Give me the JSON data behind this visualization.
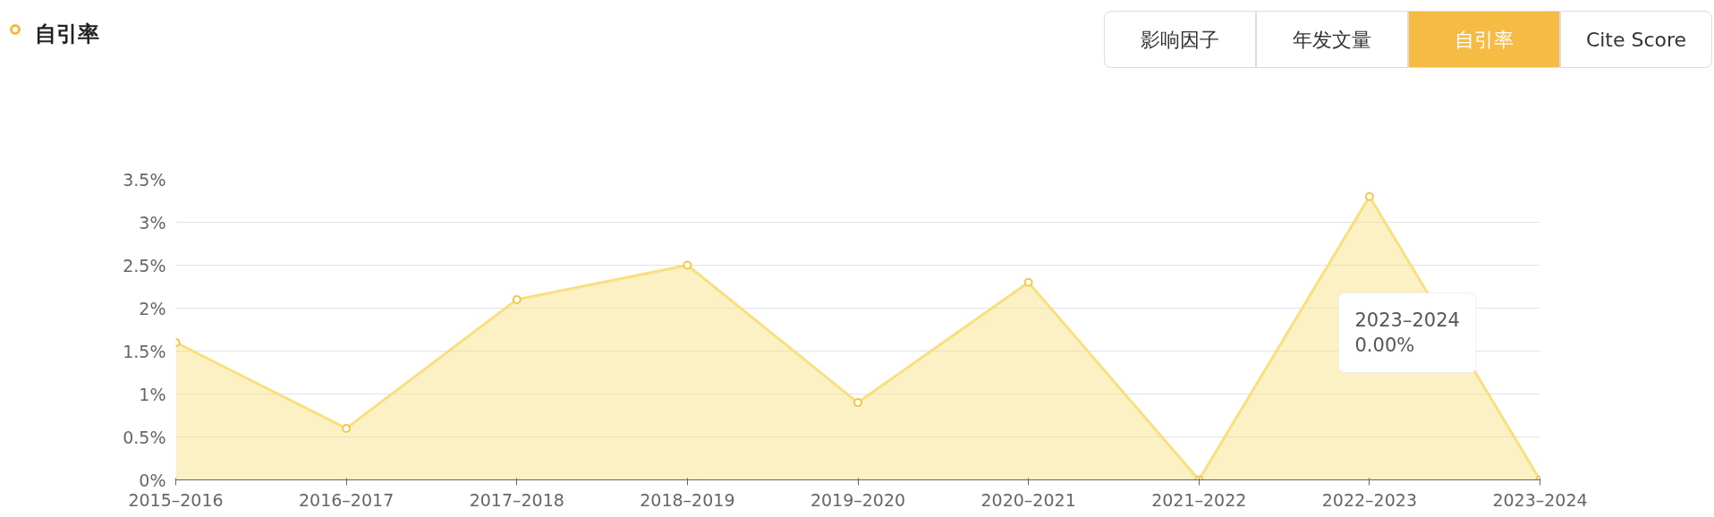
{
  "chart_data": {
    "type": "area",
    "title": "自引率",
    "categories": [
      "2015–2016",
      "2016–2017",
      "2017–2018",
      "2018–2019",
      "2019–2020",
      "2020–2021",
      "2021–2022",
      "2022–2023",
      "2023–2024"
    ],
    "values": [
      1.6,
      0.6,
      2.1,
      2.5,
      0.9,
      2.3,
      0,
      3.3,
      0
    ],
    "color": "#f9df7e",
    "marker": "circle",
    "grid": "y",
    "ylim": [
      0,
      3.5
    ],
    "yticks": [
      {
        "value": 0,
        "label": "0%"
      },
      {
        "value": 0.5,
        "label": "0.5%"
      },
      {
        "value": 1,
        "label": "1%"
      },
      {
        "value": 1.5,
        "label": "1.5%"
      },
      {
        "value": 2,
        "label": "2%"
      },
      {
        "value": 2.5,
        "label": "2.5%"
      },
      {
        "value": 3,
        "label": "3%"
      },
      {
        "value": 3.5,
        "label": "3.5%"
      }
    ],
    "annotations": [
      "影响因子",
      "年发文量",
      "自引率",
      "Cite Score",
      "2023–2024\n0.00%"
    ]
  }
}
